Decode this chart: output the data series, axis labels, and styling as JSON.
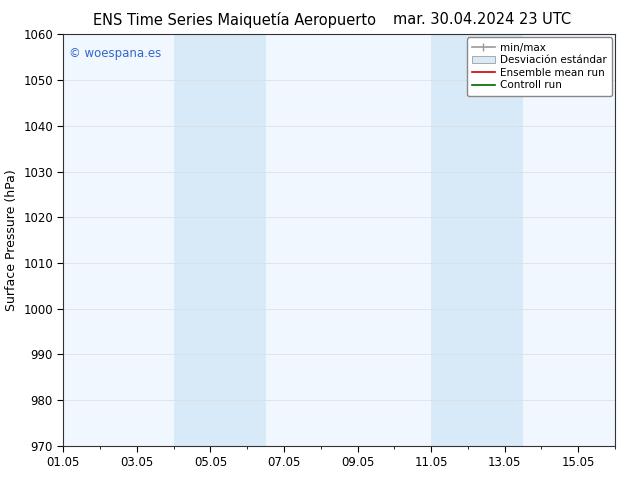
{
  "title_left": "ENS Time Series Maiquetía Aeropuerto",
  "title_right": "mar. 30.04.2024 23 UTC",
  "ylabel": "Surface Pressure (hPa)",
  "ylim": [
    970,
    1060
  ],
  "yticks": [
    970,
    980,
    990,
    1000,
    1010,
    1020,
    1030,
    1040,
    1050,
    1060
  ],
  "xtick_labels": [
    "01.05",
    "03.05",
    "05.05",
    "07.05",
    "09.05",
    "11.05",
    "13.05",
    "15.05"
  ],
  "xtick_positions": [
    0,
    2,
    4,
    6,
    8,
    10,
    12,
    14
  ],
  "xlim": [
    0,
    15
  ],
  "shaded_regions": [
    {
      "xstart": 3.0,
      "xend": 5.5
    },
    {
      "xstart": 10.0,
      "xend": 12.5
    }
  ],
  "shade_color": "#d8eaf7",
  "watermark": "© woespana.es",
  "watermark_color": "#3366cc",
  "bg_color": "#ffffff",
  "plot_bg_color": "#f0f7ff",
  "grid_color": "#dddddd",
  "title_fontsize": 10.5,
  "tick_fontsize": 8.5,
  "ylabel_fontsize": 9,
  "legend_fontsize": 7.5
}
